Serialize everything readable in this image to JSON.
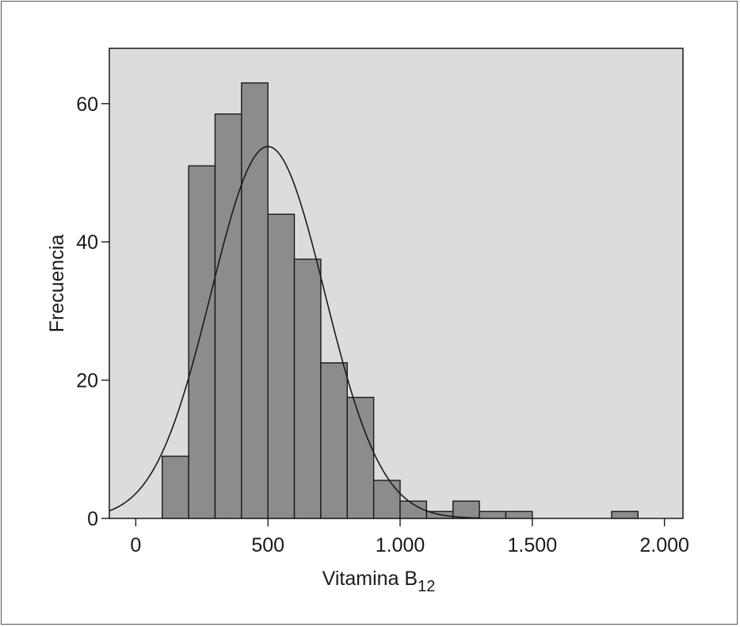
{
  "chart_data": {
    "type": "bar",
    "title": "",
    "xlabel": "Vitamina B",
    "xlabel_subscript": "12",
    "ylabel": "Frecuencia",
    "xlim": [
      -100,
      2070
    ],
    "ylim": [
      0,
      68
    ],
    "x_ticks": [
      0,
      500,
      1000,
      1500,
      2000
    ],
    "x_tick_labels": [
      "0",
      "500",
      "1.000",
      "1.500",
      "2.000"
    ],
    "y_ticks": [
      0,
      20,
      40,
      60
    ],
    "y_tick_labels": [
      "0",
      "20",
      "40",
      "60"
    ],
    "bin_width": 100,
    "bins": [
      {
        "start": 100,
        "end": 200,
        "count": 9
      },
      {
        "start": 200,
        "end": 300,
        "count": 51
      },
      {
        "start": 300,
        "end": 400,
        "count": 58.5
      },
      {
        "start": 400,
        "end": 500,
        "count": 63
      },
      {
        "start": 500,
        "end": 600,
        "count": 44
      },
      {
        "start": 600,
        "end": 700,
        "count": 37.5
      },
      {
        "start": 700,
        "end": 800,
        "count": 22.5
      },
      {
        "start": 800,
        "end": 900,
        "count": 17.5
      },
      {
        "start": 900,
        "end": 1000,
        "count": 5.5
      },
      {
        "start": 1000,
        "end": 1100,
        "count": 2.5
      },
      {
        "start": 1100,
        "end": 1200,
        "count": 1
      },
      {
        "start": 1200,
        "end": 1300,
        "count": 2.5
      },
      {
        "start": 1300,
        "end": 1400,
        "count": 1
      },
      {
        "start": 1400,
        "end": 1500,
        "count": 1
      },
      {
        "start": 1800,
        "end": 1900,
        "count": 1
      }
    ],
    "normal_curve": {
      "mean": 500,
      "sd": 215,
      "peak": 53.8
    },
    "grid": false,
    "colors": {
      "plot_bg": "#dcdcdc",
      "bar_fill": "#8c8c8c",
      "bar_stroke": "#1a1a1a",
      "curve": "#1a1a1a"
    }
  }
}
